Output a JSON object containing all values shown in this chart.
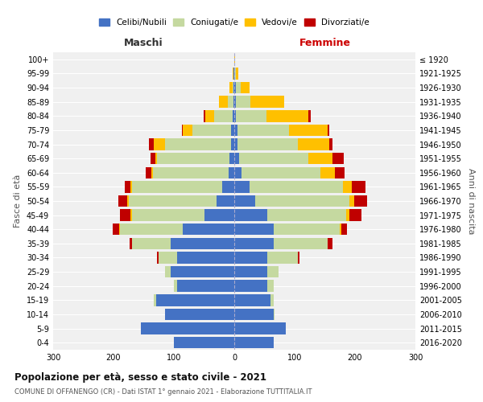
{
  "age_groups": [
    "0-4",
    "5-9",
    "10-14",
    "15-19",
    "20-24",
    "25-29",
    "30-34",
    "35-39",
    "40-44",
    "45-49",
    "50-54",
    "55-59",
    "60-64",
    "65-69",
    "70-74",
    "75-79",
    "80-84",
    "85-89",
    "90-94",
    "95-99",
    "100+"
  ],
  "birth_years": [
    "2016-2020",
    "2011-2015",
    "2006-2010",
    "2001-2005",
    "1996-2000",
    "1991-1995",
    "1986-1990",
    "1981-1985",
    "1976-1980",
    "1971-1975",
    "1966-1970",
    "1961-1965",
    "1956-1960",
    "1951-1955",
    "1946-1950",
    "1941-1945",
    "1936-1940",
    "1931-1935",
    "1926-1930",
    "1921-1925",
    "≤ 1920"
  ],
  "colors": {
    "celibi": "#4472c4",
    "coniugati": "#c5d9a0",
    "vedovi": "#ffc000",
    "divorziati": "#c00000"
  },
  "maschi": {
    "celibi": [
      100,
      155,
      115,
      130,
      95,
      105,
      95,
      105,
      85,
      50,
      30,
      20,
      10,
      8,
      5,
      5,
      3,
      1,
      1,
      1,
      0
    ],
    "coniugati": [
      0,
      0,
      0,
      3,
      5,
      10,
      30,
      65,
      105,
      120,
      145,
      150,
      125,
      120,
      110,
      65,
      30,
      10,
      2,
      0,
      0
    ],
    "vedovi": [
      0,
      0,
      0,
      0,
      0,
      0,
      0,
      0,
      1,
      2,
      2,
      2,
      2,
      3,
      18,
      15,
      15,
      15,
      5,
      2,
      0
    ],
    "divorziati": [
      0,
      0,
      0,
      0,
      0,
      0,
      3,
      3,
      10,
      18,
      15,
      10,
      10,
      8,
      8,
      2,
      3,
      0,
      0,
      0,
      0
    ]
  },
  "femmine": {
    "celibi": [
      65,
      85,
      65,
      60,
      55,
      55,
      55,
      65,
      65,
      55,
      35,
      25,
      12,
      8,
      5,
      5,
      3,
      2,
      2,
      0,
      0
    ],
    "coniugati": [
      0,
      0,
      2,
      5,
      10,
      18,
      50,
      90,
      110,
      130,
      155,
      155,
      130,
      115,
      100,
      85,
      50,
      25,
      8,
      2,
      0
    ],
    "vedovi": [
      0,
      0,
      0,
      0,
      0,
      0,
      0,
      0,
      2,
      5,
      8,
      15,
      25,
      40,
      52,
      65,
      70,
      55,
      15,
      4,
      1
    ],
    "divorziati": [
      0,
      0,
      0,
      0,
      0,
      0,
      3,
      8,
      10,
      20,
      22,
      22,
      15,
      18,
      5,
      2,
      4,
      0,
      0,
      0,
      0
    ]
  },
  "xlim": 300,
  "title": "Popolazione per età, sesso e stato civile - 2021",
  "subtitle": "COMUNE DI OFFANENGO (CR) - Dati ISTAT 1° gennaio 2021 - Elaborazione TUTTITALIA.IT",
  "xlabel_left": "Maschi",
  "xlabel_right": "Femmine",
  "ylabel_left": "Fasce di età",
  "ylabel_right": "Anni di nascita",
  "legend_labels": [
    "Celibi/Nubili",
    "Coniugati/e",
    "Vedovi/e",
    "Divorziati/e"
  ],
  "bg_color": "#f0f0f0"
}
